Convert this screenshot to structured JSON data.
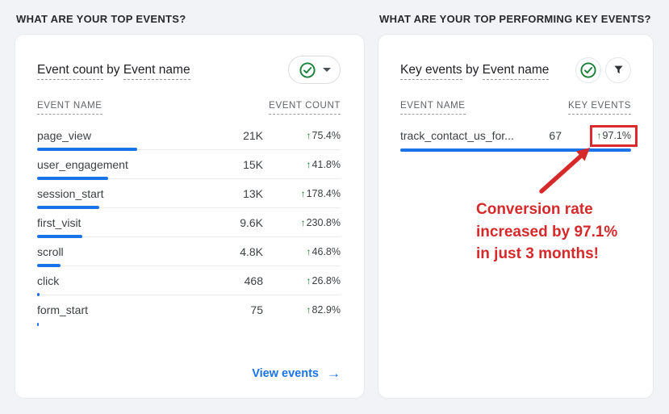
{
  "icons": {
    "trend_up": "↑",
    "arrow_right": "→"
  },
  "colors": {
    "background": "#f1f3f7",
    "bar_blue": "#1a73e8",
    "link_blue": "#1a73e8",
    "trend_green": "#137333",
    "annotation_red": "#d62a2a",
    "text_dark": "#3c4043",
    "header_gray": "#5f6368"
  },
  "left_panel": {
    "section_title": "WHAT ARE YOUR TOP EVENTS?",
    "card_title": {
      "metric": "Event count",
      "connector": " by ",
      "dimension": "Event name"
    },
    "table": {
      "headers": [
        "EVENT NAME",
        "EVENT COUNT"
      ],
      "rows": [
        {
          "name": "page_view",
          "count": "21K",
          "change": "75.4%",
          "bar_pct": 33
        },
        {
          "name": "user_engagement",
          "count": "15K",
          "change": "41.8%",
          "bar_pct": 23.3
        },
        {
          "name": "session_start",
          "count": "13K",
          "change": "178.4%",
          "bar_pct": 20.4
        },
        {
          "name": "first_visit",
          "count": "9.6K",
          "change": "230.8%",
          "bar_pct": 15
        },
        {
          "name": "scroll",
          "count": "4.8K",
          "change": "46.8%",
          "bar_pct": 7.7
        },
        {
          "name": "click",
          "count": "468",
          "change": "26.8%",
          "bar_pct": 0.9
        },
        {
          "name": "form_start",
          "count": "75",
          "change": "82.9%",
          "bar_pct": 0.6
        }
      ]
    },
    "footer_link": "View events"
  },
  "right_panel": {
    "section_title": "WHAT ARE YOUR TOP PERFORMING KEY EVENTS?",
    "card_title": {
      "metric": "Key events",
      "connector": " by ",
      "dimension": "Event name"
    },
    "table": {
      "headers": [
        "EVENT NAME",
        "KEY EVENTS"
      ],
      "rows": [
        {
          "name": "track_contact_us_for...",
          "count": "67",
          "change": "97.1%",
          "bar_pct": 100
        }
      ]
    },
    "annotation": {
      "line1": "Conversion rate",
      "line2": "increased by 97.1%",
      "line3": "in just 3 months!"
    }
  }
}
